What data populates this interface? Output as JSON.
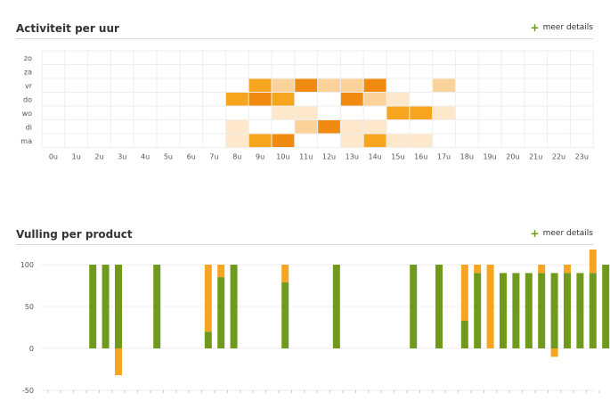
{
  "section1": {
    "title": "Activiteit per uur",
    "details_label": "meer details"
  },
  "section2": {
    "title": "Vulling per product",
    "details_label": "meer details"
  },
  "colors": {
    "grid": "#eeeeee",
    "green": "#6f9a1e",
    "orange": "#f5a522",
    "heat": [
      "#ffffff",
      "#fde8cc",
      "#fbd39a",
      "#f7a41e",
      "#f08a10"
    ]
  },
  "chart_data": [
    {
      "type": "heatmap",
      "title": "Activiteit per uur",
      "x": [
        "0u",
        "1u",
        "2u",
        "3u",
        "4u",
        "5u",
        "6u",
        "7u",
        "8u",
        "9u",
        "10u",
        "11u",
        "12u",
        "13u",
        "14u",
        "15u",
        "16u",
        "17u",
        "18u",
        "19u",
        "20u",
        "21u",
        "22u",
        "23u"
      ],
      "y": [
        "zo",
        "za",
        "vr",
        "do",
        "wo",
        "di",
        "ma"
      ],
      "values": [
        [
          0,
          0,
          0,
          0,
          0,
          0,
          0,
          0,
          0,
          0,
          0,
          0,
          0,
          0,
          0,
          0,
          0,
          0,
          0,
          0,
          0,
          0,
          0,
          0
        ],
        [
          0,
          0,
          0,
          0,
          0,
          0,
          0,
          0,
          0,
          0,
          0,
          0,
          0,
          0,
          0,
          0,
          0,
          0,
          0,
          0,
          0,
          0,
          0,
          0
        ],
        [
          0,
          0,
          0,
          0,
          0,
          0,
          0,
          0,
          0,
          3,
          2,
          4,
          2,
          2,
          4,
          0,
          0,
          2,
          0,
          0,
          0,
          0,
          0,
          0
        ],
        [
          0,
          0,
          0,
          0,
          0,
          0,
          0,
          0,
          3,
          4,
          3,
          0,
          0,
          4,
          2,
          1,
          0,
          0,
          0,
          0,
          0,
          0,
          0,
          0
        ],
        [
          0,
          0,
          0,
          0,
          0,
          0,
          0,
          0,
          0,
          0,
          1,
          1,
          0,
          0,
          0,
          3,
          3,
          1,
          0,
          0,
          0,
          0,
          0,
          0
        ],
        [
          0,
          0,
          0,
          0,
          0,
          0,
          0,
          0,
          1,
          0,
          0,
          2,
          4,
          1,
          1,
          0,
          0,
          0,
          0,
          0,
          0,
          0,
          0,
          0
        ],
        [
          0,
          0,
          0,
          0,
          0,
          0,
          0,
          0,
          1,
          3,
          4,
          0,
          0,
          1,
          3,
          1,
          1,
          0,
          0,
          0,
          0,
          0,
          0,
          0
        ]
      ],
      "scale_max": 4,
      "grid": true
    },
    {
      "type": "bar",
      "title": "Vulling per product",
      "yticks": [
        100,
        50,
        0,
        -50
      ],
      "ylim": [
        -50,
        100
      ],
      "grid": true,
      "category_count": 44,
      "series": [
        {
          "values": [
            0,
            0,
            0,
            100,
            100,
            100,
            0,
            0,
            100,
            0,
            0,
            0,
            20,
            85,
            100,
            0,
            0,
            0,
            79,
            0,
            0,
            0,
            100,
            0,
            0,
            0,
            0,
            0,
            100,
            0,
            100,
            0,
            33,
            90,
            0,
            90,
            90,
            90,
            90,
            90,
            90,
            90,
            90,
            100
          ]
        },
        {
          "values": [
            0,
            0,
            0,
            0,
            0,
            -32,
            0,
            0,
            0,
            0,
            0,
            0,
            80,
            15,
            0,
            0,
            0,
            0,
            21,
            0,
            0,
            0,
            0,
            0,
            0,
            0,
            0,
            0,
            0,
            0,
            0,
            0,
            67,
            10,
            100,
            0,
            0,
            0,
            10,
            -10,
            10,
            0,
            100,
            0
          ]
        }
      ]
    }
  ]
}
